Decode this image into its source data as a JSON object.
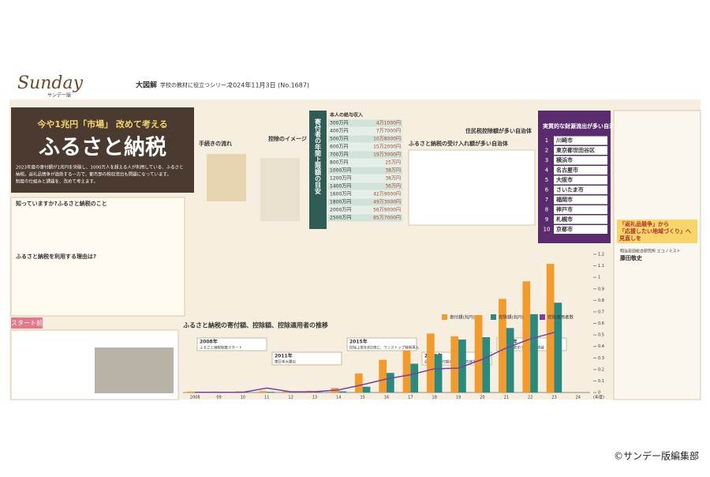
{
  "header": {
    "brand": "Sunday",
    "brand_sub": "サンデー版",
    "series": "大図解",
    "series_note": "学校の教材に役立つシリーズ",
    "date": "2024年11月3日 (No.1687)"
  },
  "lead": {
    "kicker": "今や1兆円「市場」 改めて考える",
    "title": "ふるさと納税",
    "body": [
      "2023年度の寄付額が1兆円を突破し、1000万人を超える人が利用している、ふるさと",
      "納税。返礼品競争が過熱する一方で、都市部の税収流出も問題になっています。",
      "制度の仕組みと課題を、改めて考えます。"
    ]
  },
  "sections": {
    "survey": "知っていますか?ふるさと納税のこと",
    "reason": "ふるさと納税を利用する理由は?",
    "flow": "手続きの流れ",
    "image": "控除のイメージ",
    "accept": "ふるさと納税の受け入れ額が多い自治体",
    "outflow": "住民税控除額が多い自治体",
    "start": "スタート前"
  },
  "limits": {
    "title": "寄付者の年間上限額の目安",
    "header": "本人の給与収入",
    "rows": [
      [
        "300万円",
        "4万1000円"
      ],
      [
        "400万円",
        "7万7000円"
      ],
      [
        "500万円",
        "10万8000円"
      ],
      [
        "600万円",
        "15万2000円"
      ],
      [
        "700万円",
        "19万3000円"
      ],
      [
        "800万円",
        "25万円"
      ],
      [
        "1000万円",
        "38万円"
      ],
      [
        "1200万円",
        "38万円"
      ],
      [
        "1400万円",
        "36万円"
      ],
      [
        "1600万円",
        "42万9000円"
      ],
      [
        "1800万円",
        "49万3000円"
      ],
      [
        "2000万円",
        "56万9000円"
      ],
      [
        "2500万円",
        "85万7000円"
      ]
    ]
  },
  "ranking": {
    "title": "実質的な財源流出が多い自治体",
    "items": [
      [
        "1",
        "川崎市"
      ],
      [
        "2",
        "東京都世田谷区"
      ],
      [
        "3",
        "横浜市"
      ],
      [
        "4",
        "名古屋市"
      ],
      [
        "5",
        "大阪市"
      ],
      [
        "6",
        "さいたま市"
      ],
      [
        "7",
        "福岡市"
      ],
      [
        "8",
        "神戸市"
      ],
      [
        "9",
        "札幌市"
      ],
      [
        "10",
        "京都市"
      ]
    ]
  },
  "column": {
    "title": [
      "「返礼品競争」から",
      "「応援したい地域づくり」へ",
      "見直しを"
    ],
    "role": "明治安田総合研究所 エコノミスト",
    "author": "藤田敬史"
  },
  "timeline": [
    [
      "2008年",
      "ふるさと納税制度スタート"
    ],
    [
      "2011年",
      "東日本大震災"
    ],
    [
      "2015年",
      "控除上限を約2倍に、ワンストップ特例導入"
    ],
    [
      "2019年",
      "返礼品は寄付額の3割以下の地場産品に"
    ],
    [
      "2023年",
      "寄付額が初めて1兆円を突破"
    ]
  ],
  "chart_data": {
    "type": "bar",
    "title": "ふるさと納税の寄付額、控除額、控除適用者の推移",
    "categories": [
      "2008",
      "09",
      "10",
      "11",
      "12",
      "13",
      "14",
      "15",
      "16",
      "17",
      "18",
      "19",
      "20",
      "21",
      "22",
      "23",
      "24"
    ],
    "x_unit": "(年度)",
    "series": [
      {
        "name": "寄付額(兆円)",
        "color": "#f39a2b",
        "values": [
          0.008,
          0.008,
          0.01,
          0.012,
          0.01,
          0.015,
          0.039,
          0.165,
          0.284,
          0.365,
          0.512,
          0.488,
          0.672,
          0.813,
          0.965,
          1.117,
          null
        ]
      },
      {
        "name": "控除額(兆円)",
        "color": "#2a8a80",
        "values": [
          0.002,
          0.002,
          0.002,
          0.006,
          0.004,
          0.005,
          0.01,
          0.05,
          0.17,
          0.25,
          0.33,
          0.46,
          0.48,
          0.56,
          0.68,
          0.78,
          null
        ]
      },
      {
        "name": "控除適用者数",
        "color": "#7a3fa0",
        "axis": "y2",
        "values": [
          3,
          3,
          3,
          74,
          11,
          13,
          43,
          130,
          225,
          296,
          395,
          406,
          552,
          741,
          891,
          1000,
          null
        ]
      }
    ],
    "ylim": [
      0,
      1.2
    ],
    "yticks": [
      0,
      0.1,
      0.2,
      0.3,
      0.4,
      0.5,
      0.6,
      0.7,
      0.8,
      0.9,
      1,
      1.1,
      1.2
    ],
    "y2lim": [
      0,
      2300
    ]
  },
  "credit": "©サンデー版編集部"
}
